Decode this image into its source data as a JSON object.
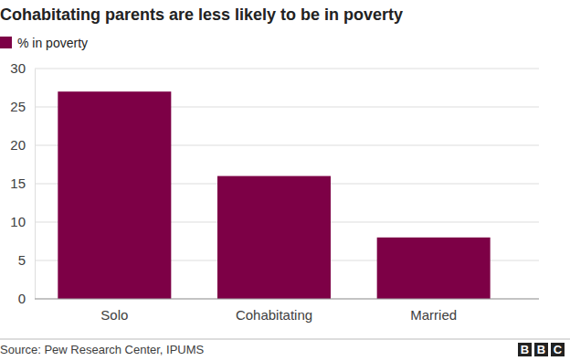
{
  "chart_data": {
    "type": "bar",
    "title": "Cohabitating parents are less likely to be in poverty",
    "categories": [
      "Solo",
      "Cohabitating",
      "Married"
    ],
    "series": [
      {
        "name": "% in poverty",
        "color": "#7d0046",
        "values": [
          27,
          16,
          8
        ]
      }
    ],
    "ylim": [
      0,
      30
    ],
    "yticks": [
      0,
      5,
      10,
      15,
      20,
      25,
      30
    ],
    "grid": true,
    "legend": "top-left",
    "source": "Source: Pew Research Center, IPUMS",
    "logo": "BBC"
  }
}
